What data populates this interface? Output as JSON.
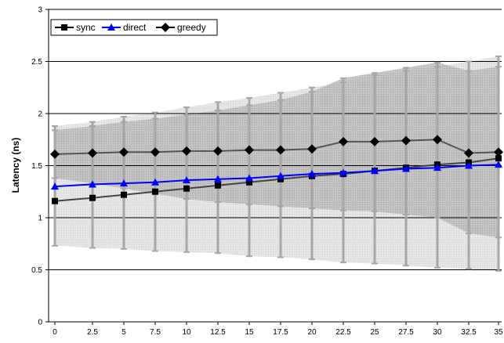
{
  "chart_data": {
    "type": "line",
    "title": "",
    "xlabel": "",
    "ylabel": "Latency (ns)",
    "x": [
      "0",
      "2.5",
      "5",
      "7.5",
      "10",
      "12.5",
      "15",
      "17.5",
      "20",
      "22.5",
      "25",
      "27.5",
      "30",
      "32.5",
      "35"
    ],
    "ylim": [
      0,
      3
    ],
    "yticks": [
      "0",
      "0.5",
      "1",
      "1.5",
      "2",
      "2.5",
      "3"
    ],
    "grid": "horizontal",
    "legend_position": "top-left",
    "series": [
      {
        "name": "sync",
        "color": "#000000",
        "marker": "square",
        "values": [
          1.16,
          1.19,
          1.22,
          1.25,
          1.28,
          1.31,
          1.34,
          1.37,
          1.4,
          1.42,
          1.45,
          1.48,
          1.51,
          1.53,
          1.57
        ],
        "error_low": [
          0.73,
          0.71,
          0.7,
          0.68,
          0.67,
          0.66,
          0.63,
          0.62,
          0.6,
          0.57,
          0.56,
          0.54,
          0.52,
          0.51,
          0.49
        ],
        "error_high": [
          1.88,
          1.92,
          1.97,
          2.01,
          2.06,
          2.11,
          2.15,
          2.2,
          2.25,
          2.3,
          2.37,
          2.41,
          2.45,
          2.5,
          2.55
        ]
      },
      {
        "name": "direct",
        "color": "#0000ff",
        "marker": "triangle",
        "values": [
          1.3,
          1.32,
          1.33,
          1.34,
          1.36,
          1.37,
          1.38,
          1.4,
          1.42,
          1.43,
          1.45,
          1.47,
          1.48,
          1.5,
          1.51
        ]
      },
      {
        "name": "greedy",
        "color": "#000000",
        "marker": "diamond",
        "values": [
          1.61,
          1.62,
          1.63,
          1.63,
          1.64,
          1.64,
          1.65,
          1.65,
          1.66,
          1.73,
          1.73,
          1.74,
          1.75,
          1.62,
          1.63
        ],
        "error_low": [
          1.38,
          1.33,
          1.28,
          1.23,
          1.18,
          1.15,
          1.13,
          1.11,
          1.09,
          1.07,
          1.06,
          1.03,
          1.0,
          0.85,
          0.81
        ],
        "error_high": [
          1.84,
          1.88,
          1.92,
          1.95,
          1.99,
          2.03,
          2.08,
          2.13,
          2.21,
          2.34,
          2.39,
          2.44,
          2.49,
          2.41,
          2.45
        ]
      }
    ]
  }
}
